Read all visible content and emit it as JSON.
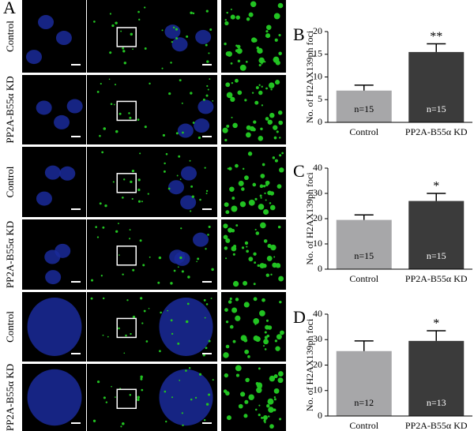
{
  "figure": {
    "panel_label": "A",
    "row_labels": [
      "Control",
      "PP2A-B55α KD",
      "Control",
      "PP2A-B55α KD",
      "Control",
      "PP2A-B55α KD"
    ]
  },
  "chart_data": [
    {
      "type": "bar",
      "panel_label": "B",
      "ylabel": "No. of H2AX139ph foci",
      "categories": [
        "Control",
        "PP2A-B55α KD"
      ],
      "values": [
        7,
        15.5
      ],
      "errors": [
        1.2,
        1.8
      ],
      "annotations": [
        "n=15",
        "n=15"
      ],
      "significance_labels": [
        null,
        "**"
      ],
      "colors": [
        "#a7a7a9",
        "#3b3b3b"
      ],
      "ylim": [
        0,
        20
      ],
      "yticks": [
        0,
        5,
        10,
        15,
        20
      ]
    },
    {
      "type": "bar",
      "panel_label": "C",
      "ylabel": "No. of H2AX139ph foci",
      "categories": [
        "Control",
        "PP2A-B55α KD"
      ],
      "values": [
        19.5,
        27
      ],
      "errors": [
        2,
        3
      ],
      "annotations": [
        "n=15",
        "n=15"
      ],
      "significance_labels": [
        null,
        "*"
      ],
      "colors": [
        "#a7a7a9",
        "#3b3b3b"
      ],
      "ylim": [
        0,
        40
      ],
      "yticks": [
        0,
        10,
        20,
        30,
        40
      ]
    },
    {
      "type": "bar",
      "panel_label": "D",
      "ylabel": "No. of H2AX139ph foci",
      "categories": [
        "Control",
        "PP2A-B55α KD"
      ],
      "values": [
        25.5,
        29.5
      ],
      "errors": [
        4,
        4
      ],
      "annotations": [
        "n=12",
        "n=13"
      ],
      "significance_labels": [
        null,
        "*"
      ],
      "colors": [
        "#a7a7a9",
        "#3b3b3b"
      ],
      "ylim": [
        0,
        40
      ],
      "yticks": [
        0,
        10,
        20,
        30,
        40
      ]
    }
  ]
}
